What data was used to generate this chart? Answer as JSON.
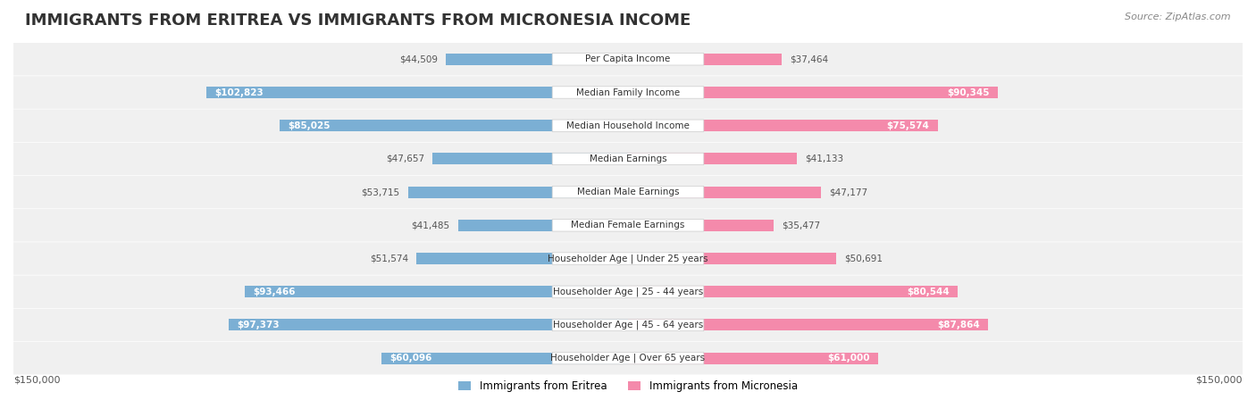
{
  "title": "IMMIGRANTS FROM ERITREA VS IMMIGRANTS FROM MICRONESIA INCOME",
  "source": "Source: ZipAtlas.com",
  "categories": [
    "Per Capita Income",
    "Median Family Income",
    "Median Household Income",
    "Median Earnings",
    "Median Male Earnings",
    "Median Female Earnings",
    "Householder Age | Under 25 years",
    "Householder Age | 25 - 44 years",
    "Householder Age | 45 - 64 years",
    "Householder Age | Over 65 years"
  ],
  "eritrea_values": [
    44509,
    102823,
    85025,
    47657,
    53715,
    41485,
    51574,
    93466,
    97373,
    60096
  ],
  "micronesia_values": [
    37464,
    90345,
    75574,
    41133,
    47177,
    35477,
    50691,
    80544,
    87864,
    61000
  ],
  "eritrea_labels": [
    "$44,509",
    "$102,823",
    "$85,025",
    "$47,657",
    "$53,715",
    "$41,485",
    "$51,574",
    "$93,466",
    "$97,373",
    "$60,096"
  ],
  "micronesia_labels": [
    "$37,464",
    "$90,345",
    "$75,574",
    "$41,133",
    "$47,177",
    "$35,477",
    "$50,691",
    "$80,544",
    "$87,864",
    "$61,000"
  ],
  "eritrea_color": "#7bafd4",
  "micronesia_color": "#f48aab",
  "eritrea_color_dark": "#5b8fbf",
  "micronesia_color_dark": "#e8638e",
  "max_value": 150000,
  "legend_eritrea": "Immigrants from Eritrea",
  "legend_micronesia": "Immigrants from Micronesia",
  "background_color": "#ffffff",
  "row_bg_color": "#f0f0f0",
  "label_fontsize": 8.5,
  "title_fontsize": 13,
  "axis_label": "$150,000"
}
